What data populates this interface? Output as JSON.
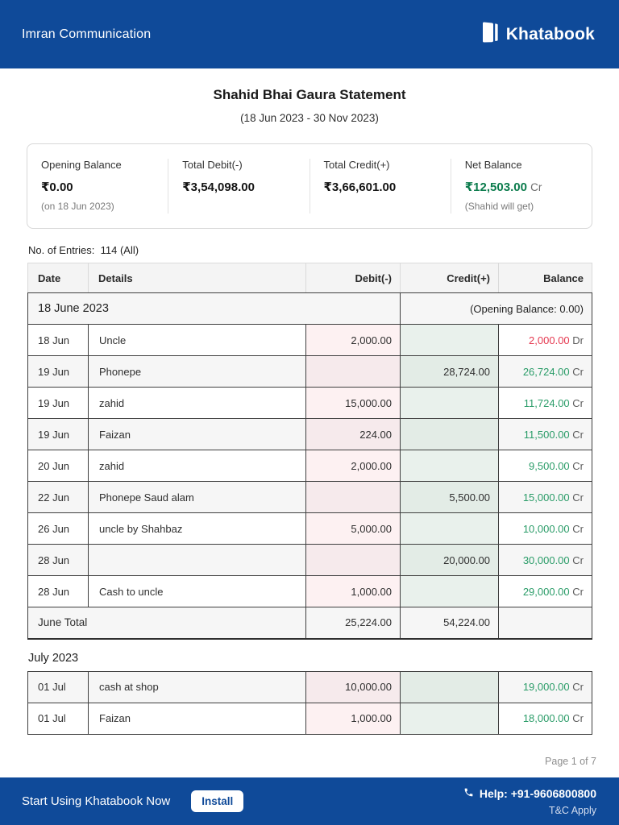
{
  "colors": {
    "brand_blue": "#0f4a99",
    "net_balance_green": "#0c7c4d",
    "credit_green": "#2a9c68",
    "debit_red": "#e53950",
    "debit_cell_tint": "#fdf1f2",
    "credit_cell_tint": "#e9f1ec"
  },
  "header": {
    "business_name": "Imran Communication",
    "brand_name": "Khatabook"
  },
  "title": {
    "heading": "Shahid Bhai Gaura Statement",
    "date_range": "(18 Jun 2023 - 30 Nov 2023)"
  },
  "summary": {
    "cards": [
      {
        "label": "Opening Balance",
        "value": "₹0.00",
        "note": "(on 18 Jun 2023)"
      },
      {
        "label": "Total Debit(-)",
        "value": "₹3,54,098.00",
        "note": ""
      },
      {
        "label": "Total Credit(+)",
        "value": "₹3,66,601.00",
        "note": ""
      },
      {
        "label": "Net Balance",
        "value": "₹12,503.00",
        "suffix": "Cr",
        "note": "(Shahid will get)"
      }
    ]
  },
  "entries": {
    "label": "No. of Entries:",
    "count": "114 (All)"
  },
  "statement": {
    "columns": [
      "Date",
      "Details",
      "Debit(-)",
      "Credit(+)",
      "Balance"
    ],
    "june": {
      "group": {
        "label": "18 June 2023",
        "note": "(Opening Balance: 0.00)"
      },
      "rows": [
        {
          "date": "18 Jun",
          "details": "Uncle",
          "debit": "2,000.00",
          "credit": "",
          "balance": "2,000.00",
          "balance_suffix": "Dr",
          "balance_type": "dr"
        },
        {
          "date": "19 Jun",
          "details": "Phonepe",
          "debit": "",
          "credit": "28,724.00",
          "balance": "26,724.00",
          "balance_suffix": "Cr",
          "balance_type": "cr"
        },
        {
          "date": "19 Jun",
          "details": "zahid",
          "debit": "15,000.00",
          "credit": "",
          "balance": "11,724.00",
          "balance_suffix": "Cr",
          "balance_type": "cr"
        },
        {
          "date": "19 Jun",
          "details": "Faizan",
          "debit": "224.00",
          "credit": "",
          "balance": "11,500.00",
          "balance_suffix": "Cr",
          "balance_type": "cr"
        },
        {
          "date": "20 Jun",
          "details": "zahid",
          "debit": "2,000.00",
          "credit": "",
          "balance": "9,500.00",
          "balance_suffix": "Cr",
          "balance_type": "cr"
        },
        {
          "date": "22 Jun",
          "details": "Phonepe Saud alam",
          "debit": "",
          "credit": "5,500.00",
          "balance": "15,000.00",
          "balance_suffix": "Cr",
          "balance_type": "cr"
        },
        {
          "date": "26 Jun",
          "details": "uncle by Shahbaz",
          "debit": "5,000.00",
          "credit": "",
          "balance": "10,000.00",
          "balance_suffix": "Cr",
          "balance_type": "cr"
        },
        {
          "date": "28 Jun",
          "details": "",
          "debit": "",
          "credit": "20,000.00",
          "balance": "30,000.00",
          "balance_suffix": "Cr",
          "balance_type": "cr"
        },
        {
          "date": "28 Jun",
          "details": "Cash to uncle",
          "debit": "1,000.00",
          "credit": "",
          "balance": "29,000.00",
          "balance_suffix": "Cr",
          "balance_type": "cr"
        }
      ],
      "total": {
        "label": "June Total",
        "debit": "25,224.00",
        "credit": "54,224.00",
        "balance": ""
      }
    },
    "july": {
      "heading": "July 2023",
      "rows": [
        {
          "date": "01 Jul",
          "details": "cash at shop",
          "debit": "10,000.00",
          "credit": "",
          "balance": "19,000.00",
          "balance_suffix": "Cr",
          "balance_type": "cr"
        },
        {
          "date": "01 Jul",
          "details": "Faizan",
          "debit": "1,000.00",
          "credit": "",
          "balance": "18,000.00",
          "balance_suffix": "Cr",
          "balance_type": "cr"
        }
      ]
    }
  },
  "pagination": {
    "text": "Page 1 of 7"
  },
  "footer": {
    "cta_text": "Start Using Khatabook Now",
    "install_label": "Install",
    "help_text": "Help: +91-9606800800",
    "tnc_text": "T&C Apply"
  }
}
